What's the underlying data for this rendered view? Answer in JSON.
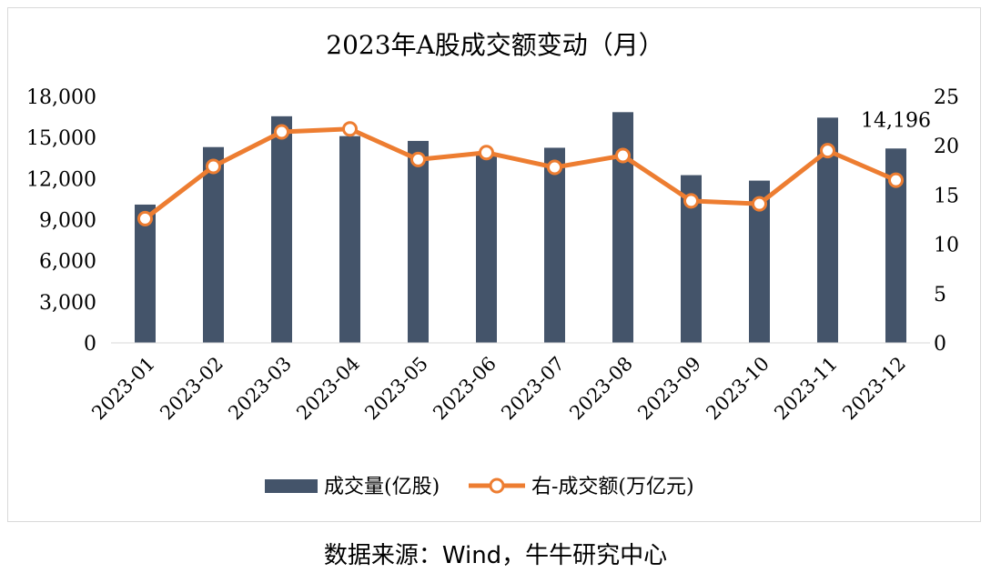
{
  "chart_data": {
    "type": "bar+line",
    "title": "2023年A股成交额变动（月）",
    "categories": [
      "2023-01",
      "2023-02",
      "2023-03",
      "2023-04",
      "2023-05",
      "2023-06",
      "2023-07",
      "2023-08",
      "2023-09",
      "2023-10",
      "2023-11",
      "2023-12"
    ],
    "series": [
      {
        "name": "成交量(亿股)",
        "type": "bar",
        "axis": "left",
        "color": "#44546a",
        "values": [
          10100,
          14300,
          16550,
          15100,
          14750,
          13700,
          14250,
          16850,
          12250,
          11850,
          16450,
          14196
        ]
      },
      {
        "name": "右-成交额(万亿元)",
        "type": "line",
        "axis": "right",
        "color": "#ed7d31",
        "values": [
          12.6,
          17.9,
          21.4,
          21.7,
          18.6,
          19.3,
          17.8,
          19.0,
          14.4,
          14.1,
          19.5,
          16.5
        ]
      }
    ],
    "y_left": {
      "min": 0,
      "max": 18000,
      "ticks": [
        0,
        3000,
        6000,
        9000,
        12000,
        15000,
        18000
      ],
      "tick_labels": [
        "0",
        "3,000",
        "6,000",
        "9,000",
        "12,000",
        "15,000",
        "18,000"
      ]
    },
    "y_right": {
      "min": 0,
      "max": 25,
      "ticks": [
        0,
        5,
        10,
        15,
        20,
        25
      ],
      "tick_labels": [
        "0",
        "5",
        "10",
        "15",
        "20",
        "25"
      ]
    },
    "annotations": [
      {
        "text": "14,196",
        "category": "2023-12",
        "series": "成交量(亿股)"
      }
    ],
    "grid": false,
    "legend": "bottom"
  },
  "source_note": "数据来源：Wind，牛牛研究中心"
}
